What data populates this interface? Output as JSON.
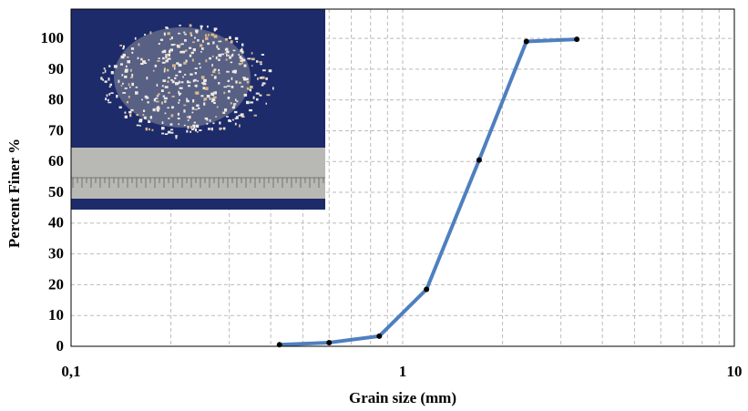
{
  "chart_data": {
    "type": "line",
    "xlabel": "Grain size (mm)",
    "ylabel": "Percent Finer %",
    "log_x": true,
    "grid": true,
    "xlim": [
      0.1,
      10
    ],
    "xticks": [
      {
        "value": 0.1,
        "label": "0,1"
      },
      1,
      10
    ],
    "xminorticks": [
      0.2,
      0.3,
      0.4,
      0.5,
      0.6,
      0.7,
      0.8,
      0.9,
      2,
      3,
      4,
      5,
      6,
      7,
      8,
      9
    ],
    "ylim": [
      0,
      109.5
    ],
    "yticks": [
      0,
      10,
      20,
      30,
      40,
      50,
      60,
      70,
      80,
      90,
      100
    ],
    "x": [
      0.425,
      0.6,
      0.85,
      1.18,
      1.7,
      2.36,
      3.35
    ],
    "series": [
      {
        "color": "#4f7fbf",
        "values": [
          0.5,
          1.2,
          3.3,
          18.5,
          60.5,
          99,
          99.7
        ]
      }
    ]
  }
}
